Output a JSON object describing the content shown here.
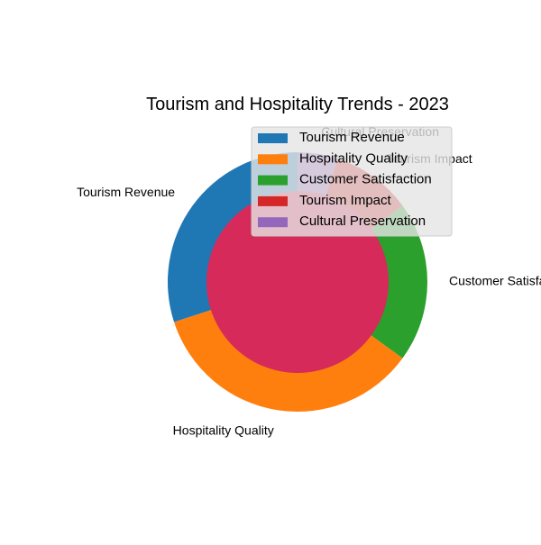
{
  "chart_data": {
    "type": "pie",
    "title": "Tourism and Hospitality Trends - 2023",
    "categories": [
      "Tourism Revenue",
      "Hospitality Quality",
      "Customer Satisfaction",
      "Tourism Impact",
      "Cultural Preservation"
    ],
    "values": [
      30,
      35,
      20,
      10,
      5
    ],
    "colors": [
      "#1f77b4",
      "#ff7f0e",
      "#2ca02c",
      "#d62728",
      "#9467bd"
    ],
    "start_angle": 90,
    "legend": {
      "placement": "top-right",
      "entries": [
        "Tourism Revenue",
        "Hospitality Quality",
        "Customer Satisfaction",
        "Tourism Impact",
        "Cultural Preservation"
      ]
    },
    "center_circle_color": "#d62a5a"
  }
}
